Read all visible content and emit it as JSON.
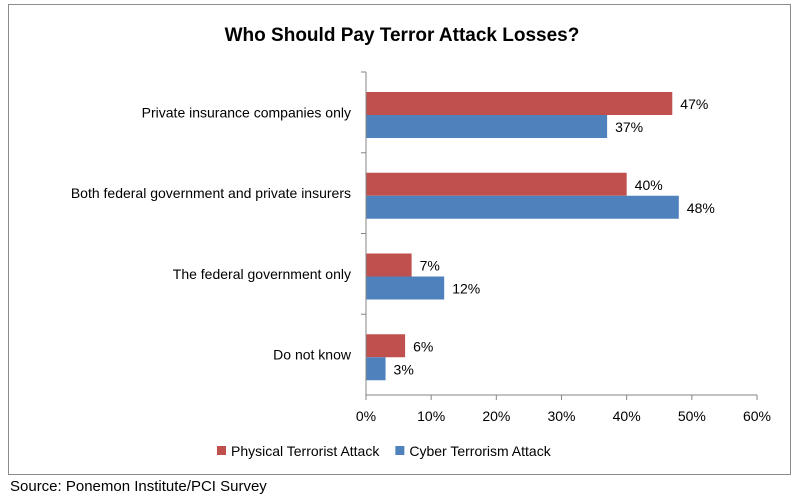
{
  "chart_data": {
    "type": "bar",
    "orientation": "horizontal",
    "title": "Who Should Pay Terror Attack Losses?",
    "categories": [
      "Private insurance companies only",
      "Both federal government and private insurers",
      "The federal government only",
      "Do not know"
    ],
    "series": [
      {
        "name": "Physical Terrorist Attack",
        "values": [
          47,
          40,
          7,
          6
        ],
        "labels": [
          "47%",
          "40%",
          "7%",
          "6%"
        ],
        "color": "#c0504d"
      },
      {
        "name": "Cyber Terrorism Attack",
        "values": [
          37,
          48,
          12,
          3
        ],
        "labels": [
          "37%",
          "48%",
          "12%",
          "3%"
        ],
        "color": "#4f81bd"
      }
    ],
    "xlim": [
      0,
      60
    ],
    "xticks": [
      0,
      10,
      20,
      30,
      40,
      50,
      60
    ],
    "xtick_labels": [
      "0%",
      "10%",
      "20%",
      "30%",
      "40%",
      "50%",
      "60%"
    ],
    "grid": false,
    "legend_position": "bottom"
  },
  "source": "Source: Ponemon Institute/PCI Survey"
}
